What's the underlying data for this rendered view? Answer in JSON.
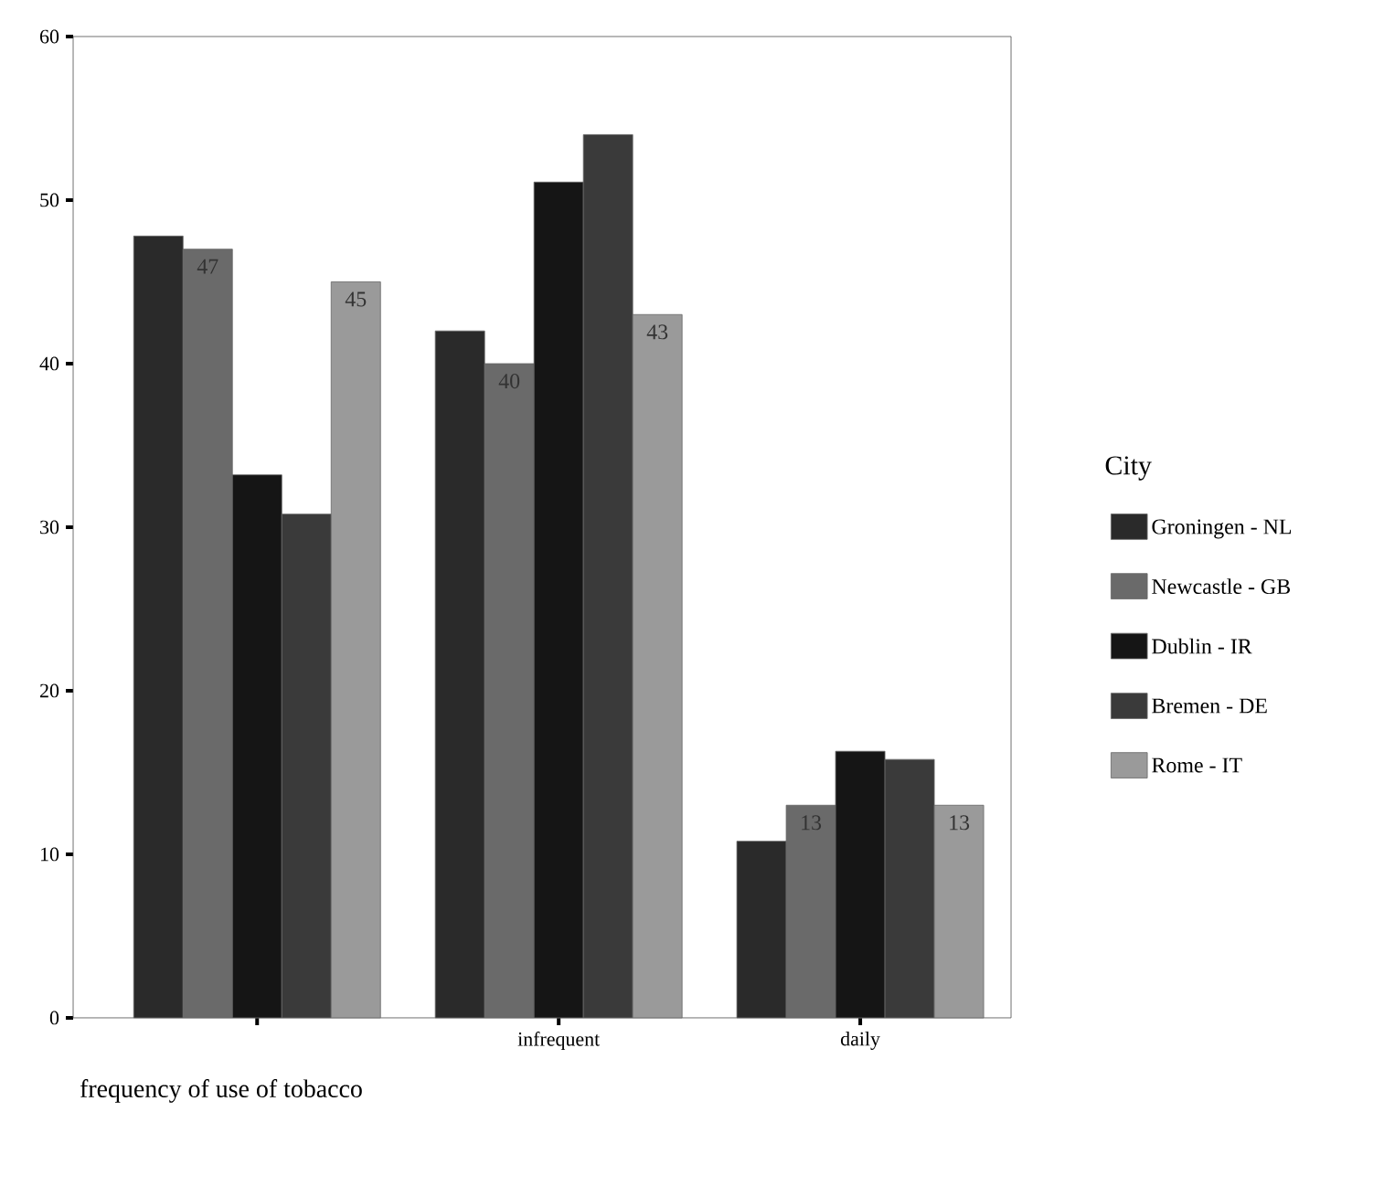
{
  "chart_data": {
    "type": "bar",
    "xlabel": "frequency of use of tobacco",
    "legend_title": "City",
    "legend": "right",
    "categories": [
      null,
      "infrequent",
      "daily"
    ],
    "ylim": [
      0,
      60
    ],
    "yticks": [
      0,
      10,
      20,
      30,
      40,
      50,
      60
    ],
    "grid": false,
    "series": [
      {
        "name": "Groningen - NL",
        "color": "#2a2a2a",
        "values": [
          47.8,
          42.0,
          10.8
        ]
      },
      {
        "name": "Newcastle - GB",
        "color": "#6a6a6a",
        "values": [
          47,
          40,
          13
        ],
        "value_labels": [
          "47",
          "40",
          "13"
        ]
      },
      {
        "name": "Dublin - IR",
        "color": "#151515",
        "values": [
          33.2,
          51.1,
          16.3
        ]
      },
      {
        "name": "Bremen - DE",
        "color": "#3a3a3a",
        "values": [
          30.8,
          54.0,
          15.8
        ]
      },
      {
        "name": "Rome - IT",
        "color": "#9a9a9a",
        "values": [
          45,
          43,
          13
        ],
        "value_labels": [
          "45",
          "43",
          "13"
        ]
      }
    ]
  }
}
